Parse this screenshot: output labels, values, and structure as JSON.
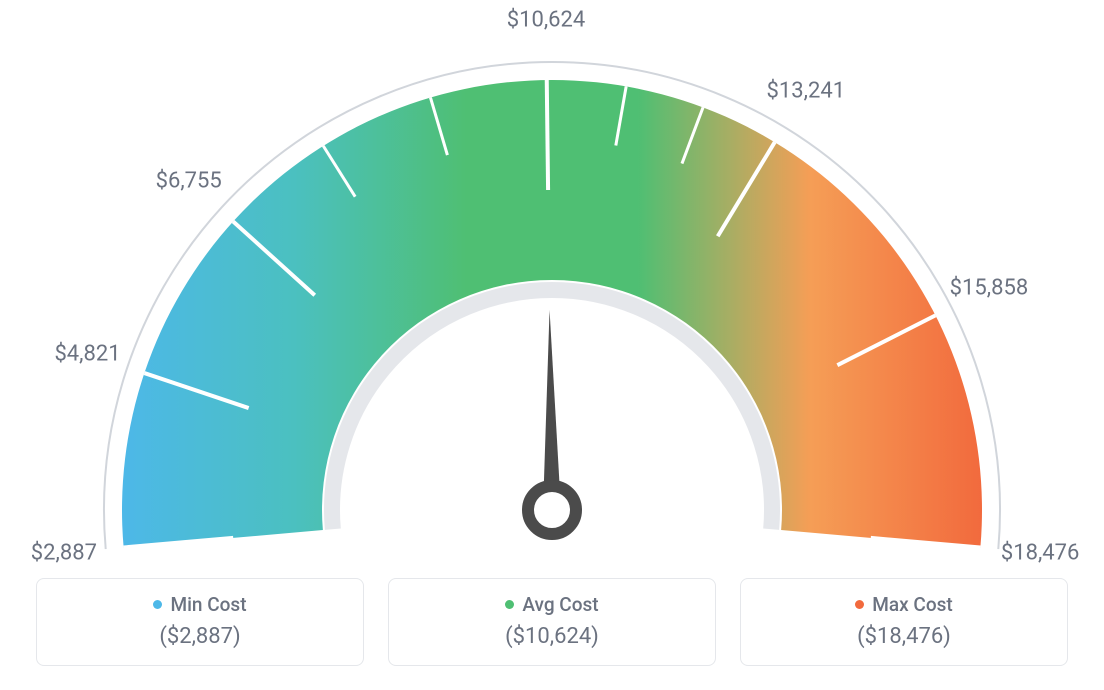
{
  "gauge": {
    "type": "gauge",
    "min_value": 2887,
    "avg_value": 10624,
    "max_value": 18476,
    "tick_values": [
      2887,
      4821,
      6755,
      10624,
      13241,
      15858,
      18476
    ],
    "tick_labels": [
      "$2,887",
      "$4,821",
      "$6,755",
      "$10,624",
      "$13,241",
      "$15,858",
      "$18,476"
    ],
    "gradient_colors": [
      "#4db8e8",
      "#4bc0c0",
      "#4fbf73",
      "#4fbf73",
      "#f59e56",
      "#f26a3d"
    ],
    "outer_radius": 430,
    "inner_radius": 230,
    "tick_color": "#ffffff",
    "outer_arc_color": "#d1d5db",
    "inner_arc_color": "#e5e7eb",
    "inner_arc_width": 16,
    "minor_tick_count": 5,
    "needle_color": "#4b4b4b",
    "label_fontsize": 22,
    "label_color": "#6b7280",
    "background_color": "#ffffff"
  },
  "cards": {
    "min": {
      "label": "Min Cost",
      "value": "($2,887)",
      "dot_color": "#4db8e8"
    },
    "avg": {
      "label": "Avg Cost",
      "value": "($10,624)",
      "dot_color": "#4fbf73"
    },
    "max": {
      "label": "Max Cost",
      "value": "($18,476)",
      "dot_color": "#f26a3d"
    }
  }
}
